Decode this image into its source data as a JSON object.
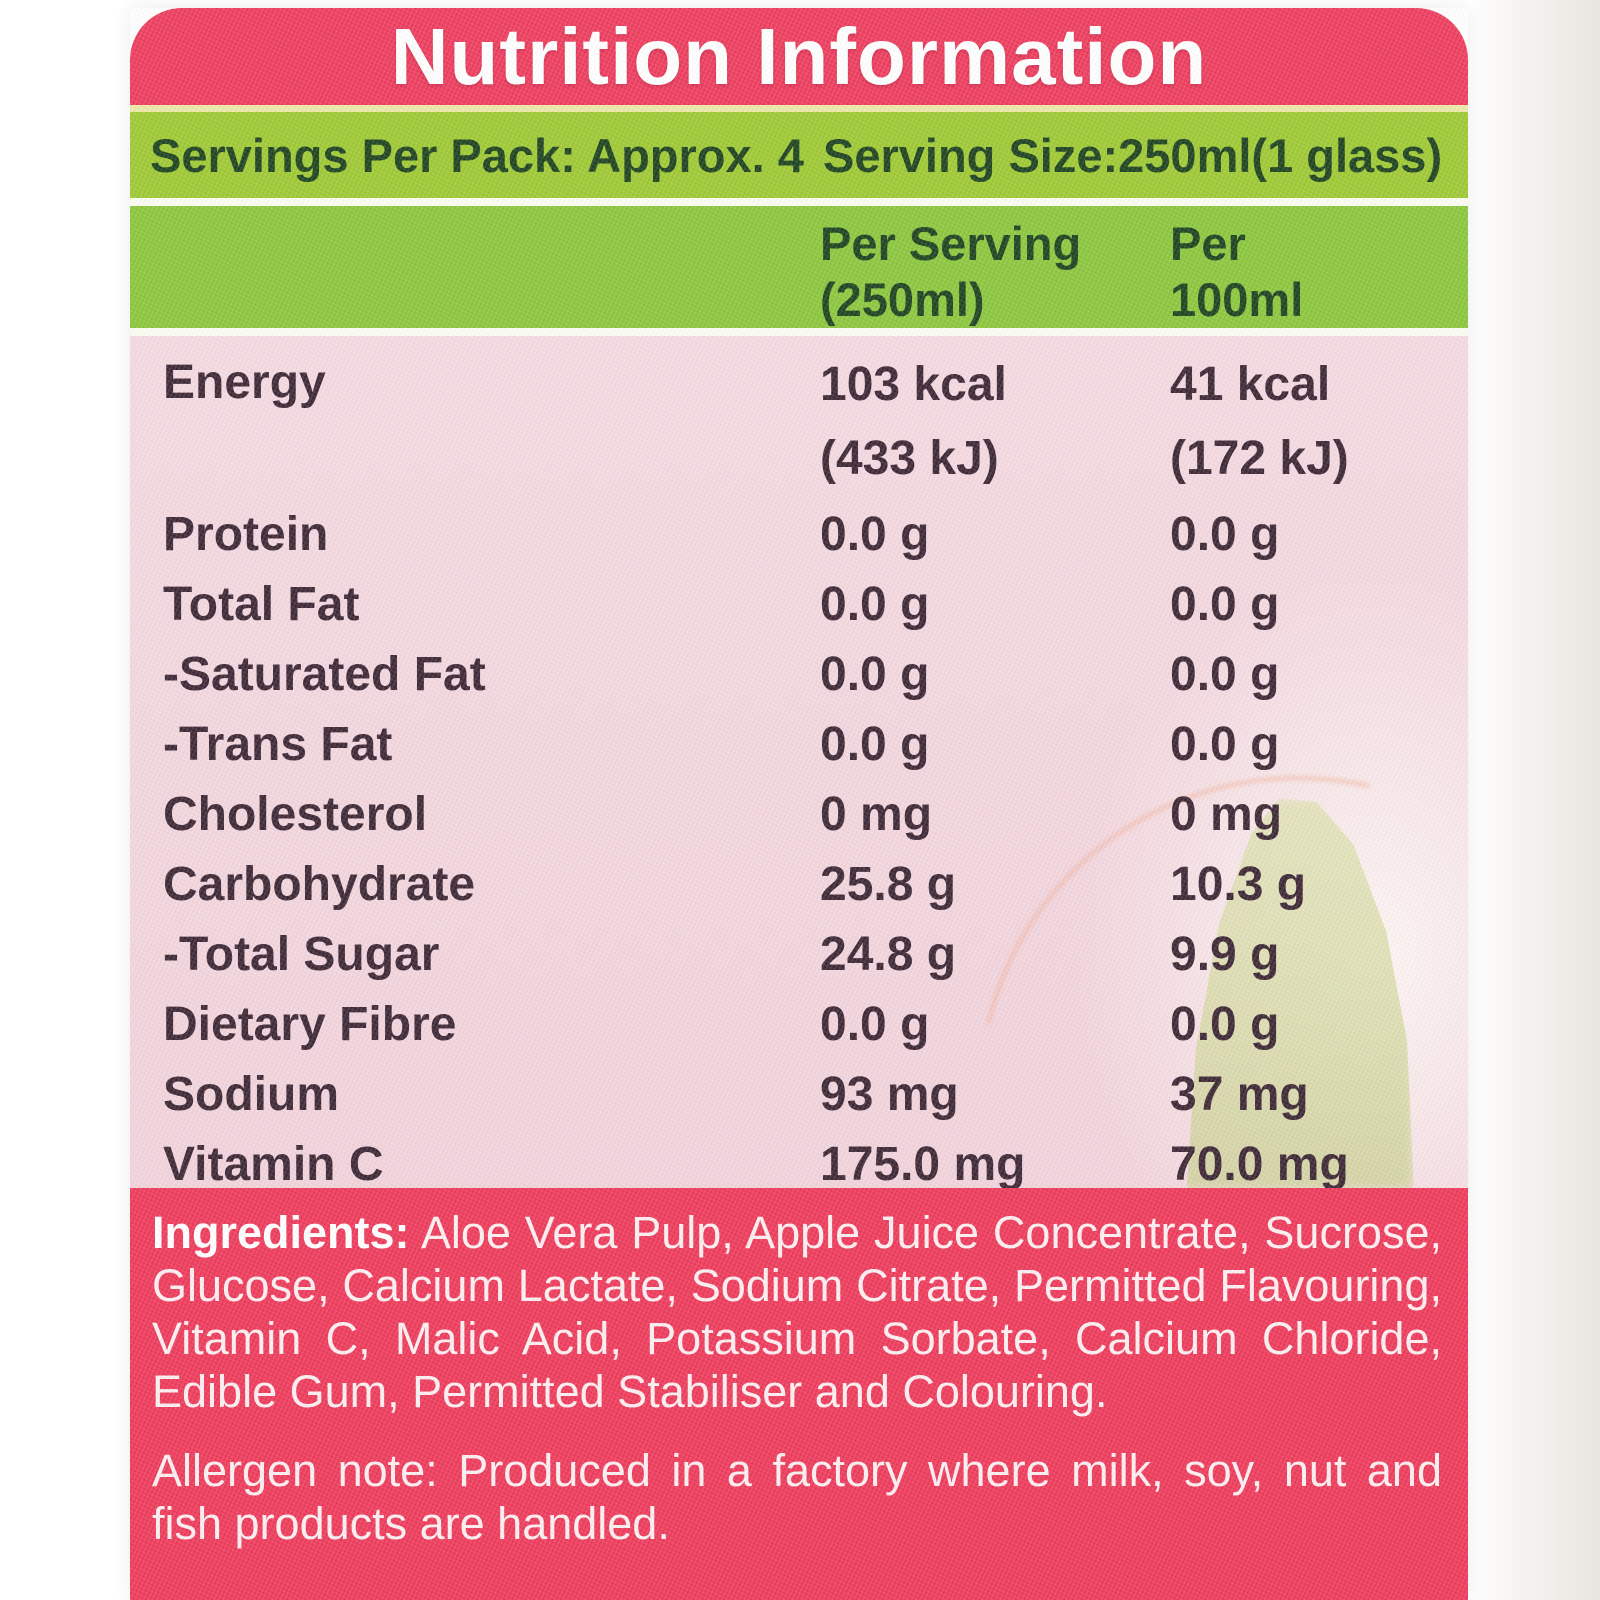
{
  "label": {
    "title": "Nutrition Information",
    "servings_per_pack": "Servings Per Pack: Approx. 4",
    "serving_size": "Serving Size:250ml(1 glass)"
  },
  "columns": {
    "per_serving": "Per Serving\n(250ml)",
    "per_100ml": "Per\n100ml"
  },
  "nutrition": {
    "rows": [
      {
        "label": "Energy",
        "per_serving": "103 kcal\n(433 kJ)",
        "per_100ml": "41 kcal\n(172 kJ)"
      },
      {
        "label": "Protein",
        "per_serving": "0.0 g",
        "per_100ml": "0.0 g"
      },
      {
        "label": "Total Fat",
        "per_serving": "0.0 g",
        "per_100ml": "0.0 g"
      },
      {
        "label": "-Saturated Fat",
        "per_serving": "0.0 g",
        "per_100ml": "0.0 g"
      },
      {
        "label": "-Trans Fat",
        "per_serving": "0.0 g",
        "per_100ml": "0.0 g"
      },
      {
        "label": "Cholesterol",
        "per_serving": "0 mg",
        "per_100ml": "0 mg"
      },
      {
        "label": "Carbohydrate",
        "per_serving": "25.8 g",
        "per_100ml": "10.3 g"
      },
      {
        "label": "-Total Sugar",
        "per_serving": "24.8 g",
        "per_100ml": "9.9 g"
      },
      {
        "label": "Dietary Fibre",
        "per_serving": "0.0 g",
        "per_100ml": "0.0 g"
      },
      {
        "label": "Sodium",
        "per_serving": "93 mg",
        "per_100ml": "37 mg"
      },
      {
        "label": "Vitamin C",
        "per_serving": "175.0 mg",
        "per_100ml": "70.0 mg"
      }
    ]
  },
  "ingredients": {
    "heading": "Ingredients:",
    "list": "Aloe Vera Pulp, Apple Juice Concentrate, Sucrose, Glucose, Calcium Lactate, Sodium Citrate, Permitted Flavouring, Vitamin C, Malic Acid, Potassium Sorbate, Calcium Chloride, Edible Gum, Permitted Stabiliser and Colouring."
  },
  "allergen_note": "Allergen note: Produced in a factory where milk, soy, nut and fish products are handled.",
  "colors": {
    "header_pink": "#EE3E5F",
    "footer_pink": "#EE3C5C",
    "band_green_light": "#9FC935",
    "band_green": "#8CC73E",
    "cream_line": "#EDE9A8",
    "white_line": "#FBFDF2",
    "table_pink": "#F3D6DE",
    "text_dark": "#3E2936",
    "text_green_dark": "#1F4420",
    "text_white": "#FFFFFF"
  }
}
